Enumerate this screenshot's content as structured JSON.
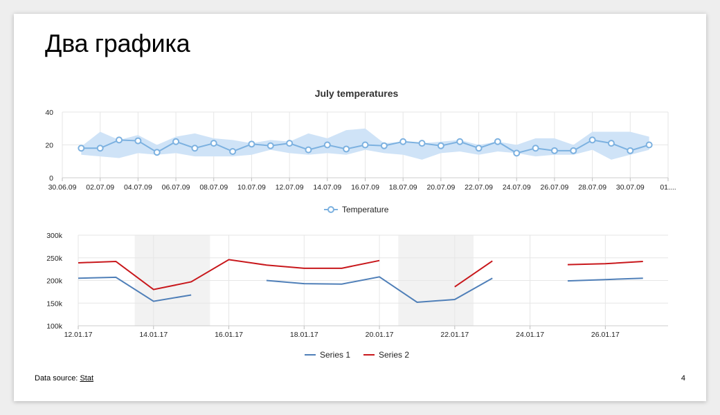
{
  "slide": {
    "title": "Два графика",
    "source_label": "Data source:",
    "source_link": "Stat",
    "page_number": "4"
  },
  "colors": {
    "temperature": "#7cb1e0",
    "temperature_range": "#cfe3f7",
    "series1": "#4f7fb8",
    "series2": "#c8171b",
    "band": "#f2f2f2",
    "grid": "#e6e6e6"
  },
  "chart_data": [
    {
      "type": "line",
      "title": "July temperatures",
      "ylim": [
        0,
        40
      ],
      "yticks": [
        0,
        20,
        40
      ],
      "x_tick_labels": [
        "30.06.09",
        "02.07.09",
        "04.07.09",
        "06.07.09",
        "08.07.09",
        "10.07.09",
        "12.07.09",
        "14.07.09",
        "16.07.09",
        "18.07.09",
        "20.07.09",
        "22.07.09",
        "24.07.09",
        "26.07.09",
        "28.07.09",
        "30.07.09",
        "01...."
      ],
      "x": [
        "01.07.09",
        "02.07.09",
        "03.07.09",
        "04.07.09",
        "05.07.09",
        "06.07.09",
        "07.07.09",
        "08.07.09",
        "09.07.09",
        "10.07.09",
        "11.07.09",
        "12.07.09",
        "13.07.09",
        "14.07.09",
        "15.07.09",
        "16.07.09",
        "17.07.09",
        "18.07.09",
        "19.07.09",
        "20.07.09",
        "21.07.09",
        "22.07.09",
        "23.07.09",
        "24.07.09",
        "25.07.09",
        "26.07.09",
        "27.07.09",
        "28.07.09",
        "29.07.09",
        "30.07.09",
        "31.07.09"
      ],
      "series": [
        {
          "name": "Temperature",
          "values": [
            18,
            18,
            23,
            22.5,
            15.5,
            22,
            18,
            21,
            16,
            20.5,
            19.5,
            21,
            17,
            20,
            17.5,
            20,
            19.5,
            22,
            21,
            19.5,
            22,
            18,
            22,
            15,
            18,
            16.5,
            16.5,
            23,
            21,
            16.5,
            20
          ]
        }
      ],
      "range": {
        "low": [
          14,
          13,
          12,
          15,
          14,
          15,
          13,
          13,
          13,
          14,
          17,
          15,
          14,
          15,
          14,
          17,
          15,
          14,
          11,
          15,
          16,
          14,
          16,
          15,
          13,
          14,
          14,
          17,
          11,
          14,
          17
        ],
        "high": [
          19,
          28,
          23,
          26,
          20,
          25,
          27,
          24,
          23,
          21,
          23,
          22,
          27,
          24,
          29,
          30,
          21,
          22,
          21,
          22,
          23,
          20,
          22,
          20,
          24,
          24,
          20,
          28,
          28,
          28,
          25
        ]
      },
      "legend": "bottom"
    },
    {
      "type": "line",
      "ylim": [
        100000,
        300000
      ],
      "yticks": [
        100000,
        150000,
        200000,
        250000,
        300000
      ],
      "ytick_labels": [
        "100k",
        "150k",
        "200k",
        "250k",
        "300k"
      ],
      "x_tick_labels": [
        "12.01.17",
        "14.01.17",
        "16.01.17",
        "18.01.17",
        "20.01.17",
        "22.01.17",
        "24.01.17",
        "26.01.17"
      ],
      "x": [
        "12.01.17",
        "13.01.17",
        "14.01.17",
        "15.01.17",
        "16.01.17",
        "17.01.17",
        "18.01.17",
        "19.01.17",
        "20.01.17",
        "21.01.17",
        "22.01.17",
        "23.01.17",
        "24.01.17",
        "25.01.17",
        "26.01.17",
        "27.01.17"
      ],
      "bands": [
        [
          "13.01.17 12:00",
          "15.01.17 12:00"
        ],
        [
          "20.01.17 12:00",
          "22.01.17 12:00"
        ]
      ],
      "series": [
        {
          "name": "Series 1",
          "values": [
            205000,
            207000,
            154000,
            168000,
            null,
            200000,
            193000,
            192000,
            208000,
            152000,
            158000,
            205000,
            null,
            199000,
            202000,
            205000
          ]
        },
        {
          "name": "Series 2",
          "values": [
            239000,
            242000,
            180000,
            197000,
            246000,
            234000,
            227000,
            227000,
            244000,
            null,
            186000,
            243000,
            null,
            235000,
            237000,
            242000
          ]
        }
      ],
      "legend": "bottom"
    }
  ]
}
